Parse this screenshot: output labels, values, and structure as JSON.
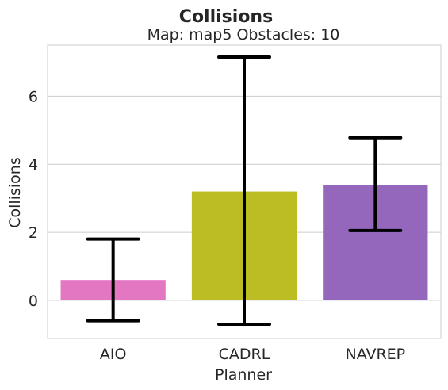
{
  "chart_data": {
    "type": "bar",
    "title": "Collisions",
    "subtitle": "Map: map5 Obstacles: 10",
    "xlabel": "Planner",
    "ylabel": "Collisions",
    "categories": [
      "AIO",
      "CADRL",
      "NAVREP"
    ],
    "values": [
      0.6,
      3.2,
      3.4
    ],
    "error_low": [
      -0.6,
      -0.7,
      2.05
    ],
    "error_high": [
      1.8,
      7.15,
      4.78
    ],
    "colors": [
      "#e377c2",
      "#bcbd22",
      "#9467bd"
    ],
    "ylim": [
      -1.12,
      7.5
    ],
    "yticks": [
      0,
      2,
      4,
      6
    ],
    "grid": true,
    "legend": "none"
  }
}
